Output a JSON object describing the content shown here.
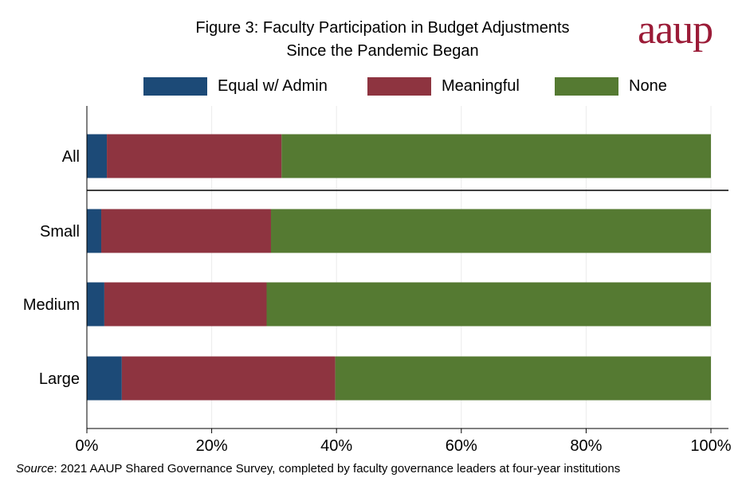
{
  "title_line1": "Figure 3: Faculty Participation in Budget Adjustments",
  "title_line2": "Since the Pandemic Began",
  "logo_text": "aaup",
  "source_label": "Source",
  "source_text": ": 2021 AAUP Shared Governance Survey, completed by faculty governance leaders at four-year institutions",
  "colors": {
    "equal": "#1c4a77",
    "meaningful": "#8e3440",
    "none": "#557a32",
    "logo": "#9b1b37"
  },
  "chart_data": {
    "type": "bar",
    "orientation": "horizontal",
    "stacked": true,
    "title": "Figure 3: Faculty Participation in Budget Adjustments Since the Pandemic Began",
    "categories": [
      "All",
      "Small",
      "Medium",
      "Large"
    ],
    "series": [
      {
        "name": "Equal w/ Admin",
        "values": [
          3.2,
          2.3,
          2.8,
          5.6
        ]
      },
      {
        "name": "Meaningful",
        "values": [
          28.0,
          27.2,
          26.0,
          34.2
        ]
      },
      {
        "name": "None",
        "values": [
          68.8,
          70.5,
          71.2,
          60.2
        ]
      }
    ],
    "xlim": [
      0,
      100
    ],
    "xticks": [
      "0%",
      "20%",
      "40%",
      "60%",
      "80%",
      "100%"
    ],
    "xtick_values": [
      0,
      20,
      40,
      60,
      80,
      100
    ],
    "grid": "vertical",
    "legend": "top",
    "separator_after": "All"
  }
}
